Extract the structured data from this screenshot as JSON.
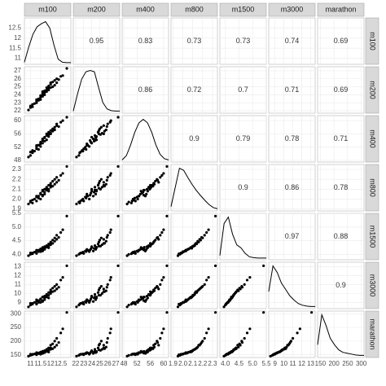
{
  "chart_data": {
    "type": "pairs",
    "grid": true,
    "point_color": "#000000",
    "variables": [
      {
        "name": "m100",
        "lim": [
          10.7,
          13.0
        ],
        "ticks": [
          11,
          11.5,
          12,
          12.5
        ],
        "values": [
          10.9,
          11.0,
          11.1,
          11.1,
          11.2,
          11.3,
          11.3,
          11.4,
          11.4,
          11.5,
          11.5,
          11.5,
          11.6,
          11.6,
          11.6,
          11.7,
          11.7,
          11.7,
          11.8,
          11.8,
          11.8,
          11.9,
          11.9,
          11.9,
          12.0,
          12.0,
          12.1,
          12.1,
          12.2,
          12.2,
          12.3,
          12.3,
          12.4,
          12.5,
          12.6,
          11.0,
          11.3,
          11.6,
          12.0,
          12.8
        ],
        "density": [
          0.05,
          0.4,
          0.7,
          0.88,
          0.95,
          1.0,
          0.85,
          0.45,
          0.12,
          0.05,
          0.04,
          0.04
        ]
      },
      {
        "name": "m200",
        "lim": [
          21.7,
          27.5
        ],
        "ticks": [
          22,
          23,
          24,
          25,
          26,
          27
        ],
        "values": [
          22.1,
          22.4,
          22.5,
          22.8,
          22.9,
          23.0,
          23.2,
          23.3,
          23.5,
          23.4,
          23.7,
          23.9,
          23.8,
          24.0,
          24.2,
          24.0,
          24.3,
          24.5,
          24.4,
          24.6,
          24.9,
          24.6,
          24.8,
          25.1,
          24.9,
          25.3,
          25.0,
          25.6,
          25.2,
          25.8,
          25.5,
          26.0,
          25.9,
          26.3,
          26.4,
          22.6,
          23.4,
          24.4,
          25.5,
          27.3
        ],
        "density": [
          0.05,
          0.45,
          0.8,
          0.97,
          1.0,
          0.97,
          0.6,
          0.25,
          0.1,
          0.06,
          0.05,
          0.05
        ]
      },
      {
        "name": "m400",
        "lim": [
          47.5,
          61.5
        ],
        "ticks": [
          48,
          52,
          56,
          60
        ],
        "values": [
          49.0,
          49.5,
          50.3,
          51.0,
          50.8,
          51.5,
          52.0,
          51.3,
          52.6,
          53.0,
          52.2,
          53.5,
          54.0,
          53.2,
          54.5,
          55.0,
          53.8,
          54.8,
          55.5,
          54.2,
          56.0,
          55.2,
          56.5,
          55.8,
          57.0,
          56.2,
          57.5,
          56.8,
          58.0,
          57.2,
          58.5,
          59.0,
          58.2,
          59.5,
          60.0,
          50.5,
          52.5,
          54.0,
          56.0,
          61.0
        ],
        "density": [
          0.05,
          0.15,
          0.4,
          0.7,
          0.92,
          1.0,
          0.92,
          0.7,
          0.4,
          0.18,
          0.08,
          0.05
        ]
      },
      {
        "name": "m800",
        "lim": [
          1.88,
          2.35
        ],
        "ticks": [
          1.9,
          {
            "value": 2.0,
            "label": "2.0"
          },
          2.1,
          2.2,
          2.3
        ],
        "values": [
          1.95,
          1.97,
          1.96,
          1.99,
          2.0,
          1.98,
          2.02,
          2.01,
          2.03,
          2.05,
          2.0,
          2.06,
          2.04,
          2.08,
          2.03,
          2.1,
          2.07,
          2.05,
          2.12,
          2.09,
          2.11,
          2.08,
          2.14,
          2.1,
          2.16,
          2.12,
          2.18,
          2.13,
          2.2,
          2.15,
          2.17,
          2.22,
          2.19,
          2.24,
          2.26,
          1.98,
          2.03,
          2.09,
          2.14,
          2.33
        ],
        "density": [
          0.1,
          0.55,
          1.0,
          0.95,
          0.78,
          0.62,
          0.48,
          0.36,
          0.25,
          0.15,
          0.08,
          0.05
        ]
      },
      {
        "name": "m1500",
        "lim": [
          3.8,
          5.5
        ],
        "ticks": [
          {
            "value": 4.0,
            "label": "4.0"
          },
          4.5,
          {
            "value": 5.0,
            "label": "5.0"
          },
          5.5
        ],
        "values": [
          3.95,
          4.0,
          4.02,
          4.05,
          4.08,
          4.03,
          4.12,
          4.1,
          4.15,
          4.18,
          4.1,
          4.2,
          4.16,
          4.25,
          4.12,
          4.28,
          4.22,
          4.18,
          4.32,
          4.26,
          4.3,
          4.24,
          4.38,
          4.3,
          4.45,
          4.35,
          4.52,
          4.4,
          4.6,
          4.48,
          4.55,
          4.7,
          4.62,
          4.8,
          4.9,
          4.05,
          4.15,
          4.22,
          4.4,
          5.4
        ],
        "density": [
          0.1,
          0.85,
          1.0,
          0.6,
          0.35,
          0.28,
          0.15,
          0.07,
          0.05,
          0.04,
          0.04,
          0.04
        ]
      },
      {
        "name": "m3000",
        "lim": [
          8.3,
          13.5
        ],
        "ticks": [
          9,
          10,
          11,
          12,
          13
        ],
        "values": [
          8.5,
          8.7,
          8.8,
          8.9,
          9.0,
          8.8,
          9.1,
          9.0,
          9.2,
          9.3,
          9.0,
          9.4,
          9.2,
          9.6,
          9.1,
          9.7,
          9.5,
          9.3,
          9.9,
          9.6,
          9.8,
          9.5,
          10.1,
          9.8,
          10.4,
          10.0,
          10.6,
          10.2,
          10.8,
          10.3,
          10.5,
          11.0,
          10.7,
          11.5,
          11.8,
          8.9,
          9.3,
          9.6,
          10.2,
          13.1
        ],
        "density": [
          0.4,
          1.0,
          0.85,
          0.6,
          0.45,
          0.3,
          0.2,
          0.12,
          0.08,
          0.06,
          0.05,
          0.05
        ]
      },
      {
        "name": "marathon",
        "lim": [
          140,
          310
        ],
        "ticks": [
          150,
          200,
          250,
          300
        ],
        "values": [
          145,
          148,
          150,
          152,
          153,
          150,
          155,
          154,
          157,
          158,
          152,
          160,
          156,
          163,
          155,
          165,
          160,
          158,
          170,
          162,
          168,
          160,
          175,
          166,
          185,
          170,
          190,
          172,
          200,
          178,
          185,
          210,
          195,
          230,
          245,
          152,
          158,
          162,
          175,
          305
        ],
        "density": [
          0.3,
          1.0,
          0.75,
          0.45,
          0.3,
          0.18,
          0.12,
          0.1,
          0.08,
          0.06,
          0.05,
          0.05
        ]
      }
    ],
    "correlations": [
      [
        0.95,
        0.83,
        0.73,
        0.73,
        0.74,
        0.69
      ],
      [
        0.86,
        0.72,
        0.7,
        0.71,
        0.69
      ],
      [
        0.9,
        0.79,
        0.78,
        0.71
      ],
      [
        0.9,
        0.86,
        0.78
      ],
      [
        0.97,
        0.88
      ],
      [
        0.9
      ]
    ]
  }
}
